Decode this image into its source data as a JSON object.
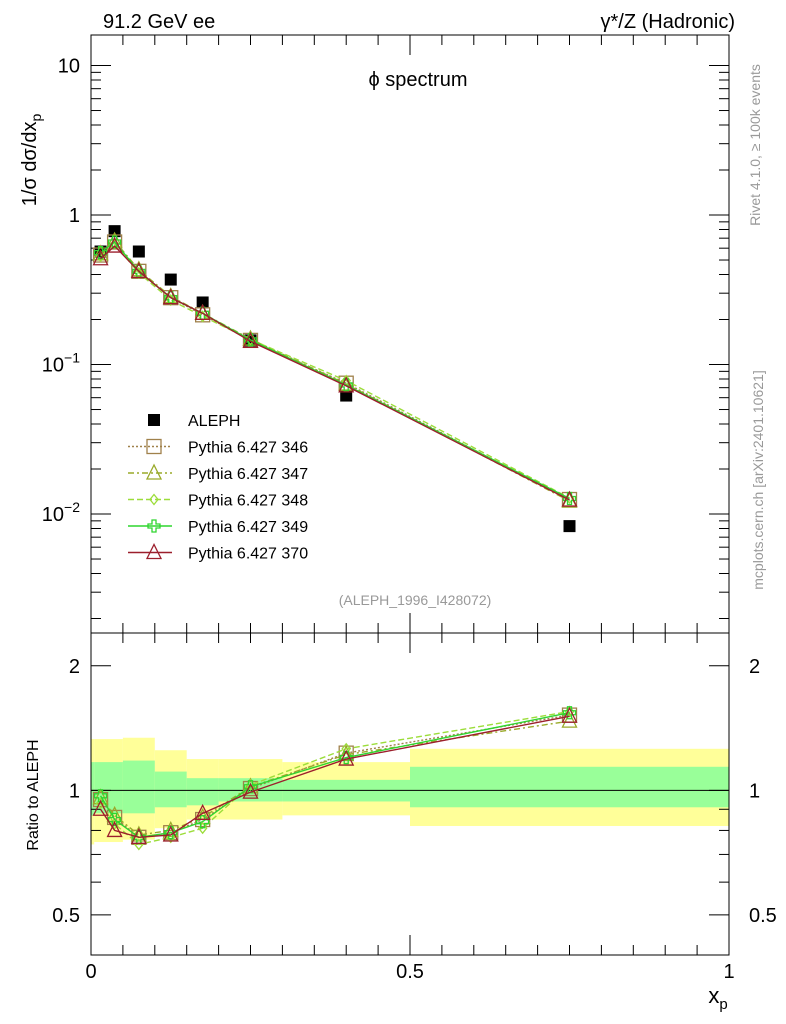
{
  "header": {
    "left": "91.2 GeV ee",
    "right_prefix": "γ*/Z (Hadronic)"
  },
  "side_labels": {
    "rivet": "Rivet 4.1.0, ≥ 100k events",
    "mcplots": "mcplots.cern.ch [arXiv:2401.10621]"
  },
  "chart_data": [
    {
      "type": "scatter",
      "panel": "main",
      "title": "ϕ spectrum",
      "ylabel_prefix": "1/σ dσ/dx",
      "ylabel_sub": "p",
      "yscale": "log",
      "ylim": [
        0.0016,
        16
      ],
      "xlim": [
        0,
        1
      ],
      "yticks": [
        {
          "value": 10,
          "label": "10"
        },
        {
          "value": 1,
          "label": "1"
        },
        {
          "value": 0.1,
          "label": "10",
          "sup": "−1"
        },
        {
          "value": 0.01,
          "label": "10",
          "sup": "−2"
        }
      ],
      "annotation": "(ALEPH_1996_I428072)",
      "x": [
        0.015,
        0.037,
        0.075,
        0.125,
        0.175,
        0.25,
        0.4,
        0.75
      ],
      "series": [
        {
          "name": "ALEPH",
          "kind": "data",
          "color": "#000000",
          "values": [
            0.57,
            0.78,
            0.57,
            0.37,
            0.26,
            0.145,
            0.062,
            0.0083
          ]
        },
        {
          "name": "Pythia 6.427 346",
          "color": "#a0814b",
          "dash": "2,2",
          "marker": "square",
          "values": [
            0.54,
            0.66,
            0.42,
            0.28,
            0.215,
            0.145,
            0.075,
            0.0125
          ]
        },
        {
          "name": "Pythia 6.427 347",
          "color": "#9aaa2a",
          "dash": "6,3,2,3",
          "marker": "triangle",
          "values": [
            0.55,
            0.67,
            0.43,
            0.285,
            0.22,
            0.148,
            0.074,
            0.0122
          ]
        },
        {
          "name": "Pythia 6.427 348",
          "color": "#9cdd3a",
          "dash": "6,3",
          "marker": "diamond",
          "values": [
            0.53,
            0.64,
            0.41,
            0.27,
            0.21,
            0.147,
            0.078,
            0.0128
          ]
        },
        {
          "name": "Pythia 6.427 349",
          "color": "#2fd52f",
          "dash": "",
          "marker": "cross",
          "values": [
            0.56,
            0.66,
            0.42,
            0.28,
            0.22,
            0.146,
            0.073,
            0.0127
          ]
        },
        {
          "name": "Pythia 6.427 370",
          "color": "#9c1f2c",
          "dash": "",
          "marker": "triangle",
          "values": [
            0.51,
            0.62,
            0.42,
            0.28,
            0.22,
            0.143,
            0.072,
            0.0124
          ]
        }
      ]
    },
    {
      "type": "line",
      "panel": "ratio",
      "ylabel": "Ratio to ALEPH",
      "yscale": "log",
      "ylim": [
        0.4,
        2.4
      ],
      "xlim": [
        0,
        1
      ],
      "xlabel_prefix": "x",
      "xlabel_sub": "p",
      "xticks": [
        {
          "value": 0,
          "label": "0"
        },
        {
          "value": 0.5,
          "label": "0.5"
        },
        {
          "value": 1,
          "label": "1"
        }
      ],
      "yticks": [
        {
          "value": 0.5,
          "label": "0.5"
        },
        {
          "value": 1,
          "label": "1"
        },
        {
          "value": 2,
          "label": "2"
        }
      ],
      "bands": [
        {
          "x0": 0.0,
          "x1": 0.005,
          "inner": [
            0.87,
            1.17
          ],
          "outer": [
            0.74,
            1.33
          ]
        },
        {
          "x0": 0.005,
          "x1": 0.05,
          "inner": [
            0.88,
            1.17
          ],
          "outer": [
            0.75,
            1.33
          ]
        },
        {
          "x0": 0.05,
          "x1": 0.1,
          "inner": [
            0.88,
            1.18
          ],
          "outer": [
            0.76,
            1.34
          ]
        },
        {
          "x0": 0.1,
          "x1": 0.15,
          "inner": [
            0.91,
            1.11
          ],
          "outer": [
            0.81,
            1.25
          ]
        },
        {
          "x0": 0.15,
          "x1": 0.2,
          "inner": [
            0.92,
            1.07
          ],
          "outer": [
            0.85,
            1.19
          ]
        },
        {
          "x0": 0.2,
          "x1": 0.3,
          "inner": [
            0.94,
            1.07
          ],
          "outer": [
            0.85,
            1.19
          ]
        },
        {
          "x0": 0.3,
          "x1": 0.5,
          "inner": [
            0.94,
            1.06
          ],
          "outer": [
            0.87,
            1.17
          ]
        },
        {
          "x0": 0.5,
          "x1": 1.0,
          "inner": [
            0.91,
            1.14
          ],
          "outer": [
            0.82,
            1.26
          ]
        }
      ],
      "band_colors": {
        "inner": "#99ff99",
        "outer": "#ffff99"
      },
      "x": [
        0.015,
        0.037,
        0.075,
        0.125,
        0.175,
        0.25,
        0.4,
        0.75
      ],
      "series": [
        {
          "name": "Pythia 6.427 346",
          "values": [
            0.95,
            0.86,
            0.77,
            0.79,
            0.85,
            1.01,
            1.23,
            1.52
          ]
        },
        {
          "name": "Pythia 6.427 347",
          "values": [
            0.96,
            0.87,
            0.78,
            0.8,
            0.86,
            1.02,
            1.22,
            1.47
          ]
        },
        {
          "name": "Pythia 6.427 348",
          "values": [
            0.93,
            0.83,
            0.74,
            0.77,
            0.81,
            1.03,
            1.26,
            1.55
          ]
        },
        {
          "name": "Pythia 6.427 349",
          "values": [
            0.97,
            0.85,
            0.77,
            0.79,
            0.84,
            1.02,
            1.2,
            1.54
          ]
        },
        {
          "name": "Pythia 6.427 370",
          "values": [
            0.9,
            0.8,
            0.77,
            0.78,
            0.88,
            0.99,
            1.19,
            1.51
          ]
        }
      ]
    }
  ]
}
